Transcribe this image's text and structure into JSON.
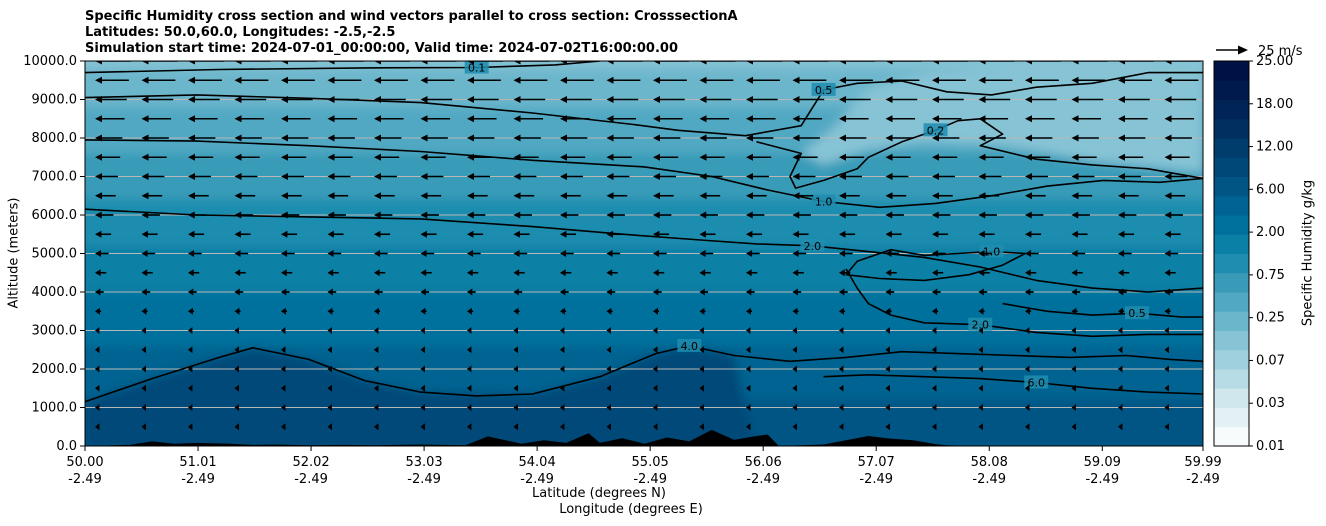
{
  "chart_data": {
    "type": "heatmap",
    "title_lines": [
      "Specific Humidity cross section and wind vectors parallel to cross section: CrosssectionA",
      "Latitudes: 50.0,60.0, Longitudes: -2.5,-2.5",
      "Simulation start time: 2024-07-01_00:00:00, Valid time: 2024-07-02T16:00:00.00"
    ],
    "ylabel": "Altitude (meters)",
    "xlabel_lines": [
      "Latitude (degrees N)",
      "Longitude (degrees E)"
    ],
    "colorbar_label": "Specific Humidity g/kg",
    "quiver_key_label": "25 m/s",
    "ylim": [
      0,
      10000
    ],
    "yticks": [
      "0.0",
      "1000.0",
      "2000.0",
      "3000.0",
      "4000.0",
      "5000.0",
      "6000.0",
      "7000.0",
      "8000.0",
      "9000.0",
      "10000.0"
    ],
    "xticks": [
      {
        "lat": "50.00",
        "lon": "-2.49"
      },
      {
        "lat": "51.01",
        "lon": "-2.49"
      },
      {
        "lat": "52.02",
        "lon": "-2.49"
      },
      {
        "lat": "53.03",
        "lon": "-2.49"
      },
      {
        "lat": "54.04",
        "lon": "-2.49"
      },
      {
        "lat": "55.05",
        "lon": "-2.49"
      },
      {
        "lat": "56.06",
        "lon": "-2.49"
      },
      {
        "lat": "57.07",
        "lon": "-2.49"
      },
      {
        "lat": "58.08",
        "lon": "-2.49"
      },
      {
        "lat": "59.09",
        "lon": "-2.49"
      },
      {
        "lat": "59.99",
        "lon": "-2.49"
      }
    ],
    "colorbar_levels": [
      "0.01",
      "0.03",
      "0.07",
      "0.25",
      "0.75",
      "2.00",
      "6.00",
      "12.00",
      "18.00",
      "25.00"
    ],
    "colorbar_colors": [
      "#f7fbfc",
      "#e4f1f4",
      "#cfe7ed",
      "#b8dce6",
      "#9fd0de",
      "#86c3d5",
      "#6cb6cc",
      "#51a8c2",
      "#399bb8",
      "#1f8daf",
      "#0a80a6",
      "#00719c",
      "#006391",
      "#005585",
      "#004878",
      "#003c6c",
      "#002f60",
      "#002456",
      "#001a4d",
      "#001145"
    ],
    "contours": [
      {
        "label": "0.1",
        "lat": [
          50.0,
          51.2,
          52.5,
          53.5,
          54.2,
          54.6
        ],
        "alt": [
          9700,
          9780,
          9820,
          9830,
          9900,
          10000
        ]
      },
      {
        "label": "0.5",
        "lat": [
          50.0,
          51.0,
          52.0,
          53.0,
          54.0,
          54.9,
          55.3,
          55.9,
          56.4,
          56.6,
          56.9,
          57.3,
          57.7,
          58.1,
          58.5,
          59.0,
          59.5,
          59.99
        ],
        "alt": [
          9050,
          9120,
          9030,
          8920,
          8650,
          8350,
          8200,
          8060,
          8320,
          9250,
          9420,
          9480,
          9200,
          9120,
          9320,
          9420,
          9700,
          9700
        ]
      },
      {
        "label": "0.2",
        "lat": [
          56.0,
          56.2,
          56.4,
          56.3,
          56.35,
          56.6,
          56.9,
          57.0,
          57.3,
          57.6,
          57.8,
          58.0,
          58.2,
          58.0,
          58.5,
          59.0,
          59.5,
          59.99
        ],
        "alt": [
          7900,
          7750,
          7600,
          7000,
          6700,
          6900,
          7200,
          7500,
          7900,
          8200,
          8450,
          8500,
          8100,
          7800,
          7450,
          7300,
          7200,
          6950
        ]
      },
      {
        "label": "1.0",
        "lat": [
          50.0,
          51.0,
          52.0,
          53.0,
          54.0,
          55.0,
          55.6,
          56.1,
          56.6,
          57.1,
          57.6,
          58.1,
          58.6,
          59.1,
          59.6,
          59.99
        ],
        "alt": [
          7950,
          7920,
          7800,
          7650,
          7420,
          7250,
          7000,
          6650,
          6350,
          6200,
          6300,
          6500,
          6750,
          6900,
          6850,
          6950
        ]
      },
      {
        "label": "2.0",
        "lat": [
          50.0,
          51.0,
          52.0,
          53.0,
          54.0,
          54.8,
          55.5,
          56.0,
          56.5,
          57.0,
          57.5,
          58.0,
          58.5,
          59.0,
          59.5,
          59.99
        ],
        "alt": [
          6150,
          6000,
          5950,
          5900,
          5700,
          5500,
          5350,
          5250,
          5200,
          5050,
          4900,
          4650,
          4300,
          4100,
          4000,
          4100
        ]
      },
      {
        "label": "1.0",
        "lat": [
          56.8,
          57.1,
          57.5,
          57.9,
          58.2,
          58.4,
          58.1,
          57.8,
          57.5,
          57.2,
          56.9,
          56.8
        ],
        "alt": [
          4450,
          4350,
          4300,
          4450,
          4700,
          5000,
          5050,
          5000,
          4950,
          5100,
          4800,
          4450
        ]
      },
      {
        "label": "2.0",
        "lat": [
          56.8,
          56.9,
          57.0,
          57.2,
          57.5,
          58.0,
          58.5,
          59.0,
          59.5,
          59.99
        ],
        "alt": [
          4600,
          4100,
          3700,
          3400,
          3200,
          3150,
          2950,
          2850,
          2900,
          2900
        ]
      },
      {
        "label": "0.5",
        "lat": [
          58.2,
          58.6,
          59.0,
          59.4,
          59.8,
          59.99
        ],
        "alt": [
          3700,
          3500,
          3400,
          3450,
          3350,
          3350
        ]
      },
      {
        "label": "4.0",
        "lat": [
          50.0,
          50.6,
          51.2,
          51.5,
          52.0,
          52.5,
          53.0,
          53.5,
          54.0,
          54.6,
          55.1,
          55.4,
          55.8,
          56.3,
          56.8,
          57.3,
          57.8,
          58.3,
          58.8,
          59.3,
          59.7,
          59.99
        ],
        "alt": [
          1150,
          1750,
          2300,
          2550,
          2250,
          1700,
          1400,
          1300,
          1350,
          1800,
          2400,
          2600,
          2350,
          2200,
          2300,
          2450,
          2400,
          2350,
          2300,
          2350,
          2250,
          2200
        ]
      },
      {
        "label": "6.0",
        "lat": [
          56.6,
          57.0,
          57.5,
          58.0,
          58.5,
          59.0,
          59.5,
          59.99
        ],
        "alt": [
          1800,
          1850,
          1800,
          1750,
          1650,
          1500,
          1400,
          1350
        ]
      }
    ],
    "terrain": {
      "lat": [
        50.0,
        50.4,
        50.6,
        50.8,
        51.0,
        51.3,
        51.5,
        51.7,
        52.0,
        52.3,
        52.6,
        53.0,
        53.4,
        53.6,
        53.9,
        54.1,
        54.3,
        54.5,
        54.6,
        54.8,
        55.0,
        55.2,
        55.4,
        55.6,
        55.8,
        56.0,
        56.1,
        56.2,
        56.6,
        56.8,
        57.0,
        57.2,
        57.4,
        57.6,
        57.7,
        58.0,
        59.99
      ],
      "alt": [
        0,
        30,
        120,
        60,
        80,
        60,
        30,
        40,
        20,
        30,
        20,
        40,
        20,
        250,
        60,
        150,
        80,
        330,
        80,
        200,
        60,
        220,
        120,
        420,
        160,
        260,
        300,
        0,
        40,
        150,
        260,
        190,
        150,
        50,
        20,
        0,
        0
      ]
    }
  }
}
